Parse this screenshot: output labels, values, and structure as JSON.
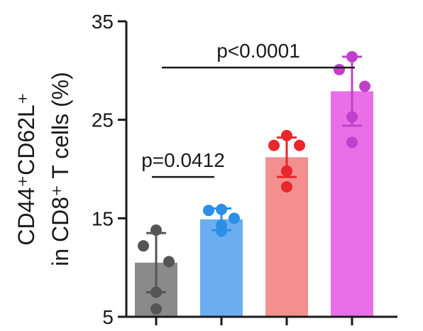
{
  "chart_data": {
    "type": "bar",
    "ylabel_line1": "CD44⁺CD62L⁺",
    "ylabel_line2": "in CD8⁺ T cells (%)",
    "ylim": [
      5,
      35
    ],
    "yticks": [
      5,
      15,
      25,
      35
    ],
    "grid": false,
    "series": [
      {
        "name": "",
        "color": "#8a8a8a",
        "dot_color": "#555555",
        "mean": 10.5,
        "sd": 3.0,
        "points": [
          13.8,
          12.2,
          10.6,
          7.5,
          5.8
        ]
      },
      {
        "name": "",
        "color": "#6aaef0",
        "dot_color": "#2b8fe6",
        "mean": 14.9,
        "sd": 1.1,
        "points": [
          15.9,
          15.8,
          15.0,
          14.3,
          13.7
        ]
      },
      {
        "name": "",
        "color": "#f48f8f",
        "dot_color": "#e8262b",
        "mean": 21.2,
        "sd": 2.0,
        "points": [
          23.4,
          22.4,
          22.4,
          19.8,
          18.2
        ]
      },
      {
        "name": "",
        "color": "#e96fe9",
        "dot_color": "#c040cc",
        "mean": 27.9,
        "sd": 3.5,
        "points": [
          31.4,
          30.1,
          28.4,
          25.3,
          22.7
        ]
      }
    ],
    "annotations": [
      {
        "text": "p=0.0412",
        "from": 0,
        "to": 1,
        "y": 19.2
      },
      {
        "text": "p<0.0001",
        "from": 0,
        "to": 3,
        "y": 30.3
      }
    ]
  }
}
